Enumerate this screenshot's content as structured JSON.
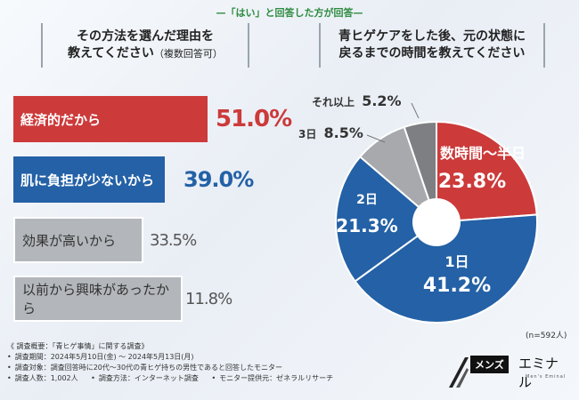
{
  "header": {
    "filter_label": "—「はい」と回答した方が回答—"
  },
  "left_panel": {
    "title_line1": "その方法を選んだ理由を",
    "title_line2": "教えてください",
    "title_note": "（複数回答可）"
  },
  "right_panel": {
    "title_line1": "青ヒゲケアをした後、元の状態に",
    "title_line2": "戻るまでの時間を教えてください"
  },
  "sample_size": "(n=592人)",
  "footer": {
    "heading": "《 調査概要：「青ヒゲ事情」に関する調査》",
    "period": "調査期間：2024年5月10日(金) ～ 2024年5月13日(月)",
    "target": "調査対象：調査回答時に20代～30代の青ヒゲ持ちの男性であると回答したモニター",
    "count": "調査人数：1,002人",
    "method": "調査方法：インターネット調査",
    "provider": "モニター提供元：ゼネラルリサーチ"
  },
  "logo": {
    "box_text": "メンズ",
    "main_text": "エミナル",
    "sub_text": "Men's Eminal"
  },
  "colors": {
    "red": "#cc3a3a",
    "blue": "#2461a6",
    "gray": "#a7a9ac",
    "dark_gray": "#7d7f82",
    "green": "#2b8a3e"
  },
  "chart_data": [
    {
      "type": "bar",
      "orientation": "horizontal",
      "title": "その方法を選んだ理由を教えてください（複数回答可）",
      "categories": [
        "経済的だから",
        "肌に負担が少ないから",
        "効果が高いから",
        "以前から興味があったから"
      ],
      "values": [
        51.0,
        39.0,
        33.5,
        11.8
      ],
      "labels": [
        "51.0%",
        "39.0%",
        "33.5%",
        "11.8%"
      ],
      "unit": "%"
    },
    {
      "type": "pie",
      "title": "青ヒゲケアをした後、元の状態に戻るまでの時間を教えてください",
      "categories": [
        "数時間～半日",
        "1日",
        "2日",
        "3日",
        "それ以上"
      ],
      "values": [
        23.8,
        41.2,
        21.3,
        8.5,
        5.2
      ],
      "labels": [
        "23.8%",
        "41.2%",
        "21.3%",
        "8.5%",
        "5.2%"
      ],
      "unit": "%"
    }
  ]
}
